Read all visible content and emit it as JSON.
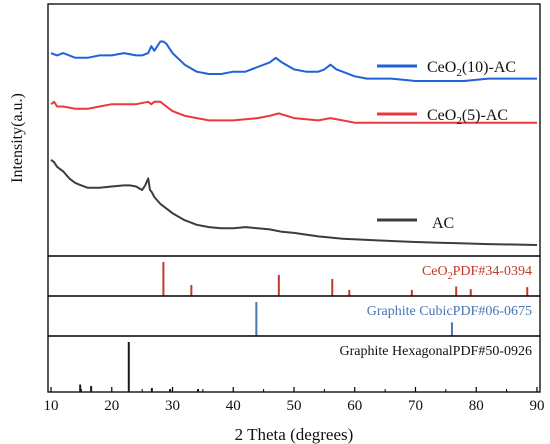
{
  "chart_data": {
    "type": "line",
    "xlabel": "2 Theta (degrees)",
    "ylabel": "Intensity(a.u.)",
    "xlim": [
      9.5,
      90.5
    ],
    "x_ticks": [
      10,
      20,
      30,
      40,
      50,
      60,
      70,
      80,
      90
    ],
    "y_ticks_shown": false,
    "grid": false,
    "legend_placement": "inline labels at right of each curve",
    "series": [
      {
        "name": "CeO₂(10)-AC",
        "label_base": "CeO",
        "label_sub": "2",
        "label_rest": "(10)-AC",
        "color": "#1f62d6",
        "x": [
          10,
          11,
          12,
          14,
          16,
          18,
          20,
          22,
          24,
          25,
          26,
          26.5,
          27,
          28,
          28.5,
          29,
          30,
          32,
          34,
          36,
          38,
          40,
          42,
          44,
          46,
          47,
          48,
          50,
          52,
          54,
          55,
          56,
          57,
          58,
          60,
          62,
          64,
          66,
          70,
          74,
          78,
          82,
          86,
          90
        ],
        "y": [
          84,
          83,
          84,
          82,
          82,
          83,
          83,
          84,
          83,
          83,
          84,
          87,
          85,
          89,
          89,
          88,
          84,
          79,
          76,
          75,
          75,
          76,
          76,
          78,
          80,
          82,
          80,
          77,
          76,
          76,
          77,
          79,
          77,
          76,
          74,
          73,
          73,
          73,
          72,
          72,
          72,
          73,
          73,
          73
        ]
      },
      {
        "name": "CeO₂(5)-AC",
        "label_base": "CeO",
        "label_sub": "2",
        "label_rest": "(5)-AC",
        "color": "#e8383d",
        "x": [
          10,
          10.5,
          11,
          12,
          14,
          16,
          18,
          20,
          22,
          24,
          26,
          26.5,
          27,
          28,
          29,
          30,
          32,
          34,
          36,
          40,
          44,
          46,
          47.5,
          50,
          54,
          56,
          58,
          60,
          62,
          66,
          70,
          74,
          78,
          82,
          86,
          90
        ],
        "y": [
          62,
          63,
          61,
          61,
          60,
          60,
          61,
          62,
          62,
          62,
          63,
          62,
          63,
          63,
          61,
          59,
          57,
          56,
          55,
          55,
          56,
          57,
          58,
          56,
          55,
          56,
          55,
          54,
          54,
          54,
          54,
          54,
          54,
          54,
          54,
          54
        ]
      },
      {
        "name": "AC",
        "color": "#3c3c3c",
        "x": [
          10,
          10.5,
          11,
          12,
          13,
          14,
          15,
          16,
          18,
          20,
          22,
          23,
          24,
          25,
          25.5,
          26,
          26.3,
          26.6,
          27,
          28,
          30,
          32,
          34,
          36,
          38,
          40,
          42,
          44,
          46,
          48,
          50,
          54,
          58,
          62,
          66,
          70,
          74,
          78,
          82,
          86,
          90
        ],
        "y": [
          38,
          37,
          35,
          33,
          30,
          28,
          27,
          26,
          26,
          26.5,
          27,
          27,
          26.5,
          25,
          27,
          30,
          25,
          24,
          22,
          19,
          15,
          12,
          10,
          9,
          8.5,
          8.5,
          9,
          8.5,
          8,
          7,
          6.5,
          5,
          4,
          3.5,
          3,
          2.6,
          2.3,
          2,
          1.7,
          1.5,
          1.3
        ]
      }
    ],
    "reference_panels": [
      {
        "label_base": "CeO",
        "label_sub": "2",
        "label_rest": "PDF#34-0394",
        "color": "#c0392b",
        "peaks": [
          {
            "x": 28.5,
            "h": 1.0
          },
          {
            "x": 33.1,
            "h": 0.32
          },
          {
            "x": 47.5,
            "h": 0.62
          },
          {
            "x": 56.3,
            "h": 0.5
          },
          {
            "x": 59.1,
            "h": 0.18
          },
          {
            "x": 69.4,
            "h": 0.18
          },
          {
            "x": 76.7,
            "h": 0.28
          },
          {
            "x": 79.1,
            "h": 0.2
          },
          {
            "x": 88.4,
            "h": 0.26
          }
        ]
      },
      {
        "label_base": "Graphite CubicPDF#06-0675",
        "label_sub": "",
        "label_rest": "",
        "color": "#4a74b4",
        "peaks": [
          {
            "x": 43.8,
            "h": 1.0
          },
          {
            "x": 76.0,
            "h": 0.4
          }
        ]
      },
      {
        "label_base": "Graphite HexagonalPDF#50-0926",
        "label_sub": "",
        "label_rest": "",
        "color": "#1a1a1a",
        "peaks": [
          {
            "x": 14.8,
            "h": 0.15
          },
          {
            "x": 16.6,
            "h": 0.12
          },
          {
            "x": 22.8,
            "h": 1.0
          },
          {
            "x": 26.6,
            "h": 0.08
          },
          {
            "x": 29.6,
            "h": 0.06
          },
          {
            "x": 34.2,
            "h": 0.06
          }
        ]
      }
    ]
  }
}
